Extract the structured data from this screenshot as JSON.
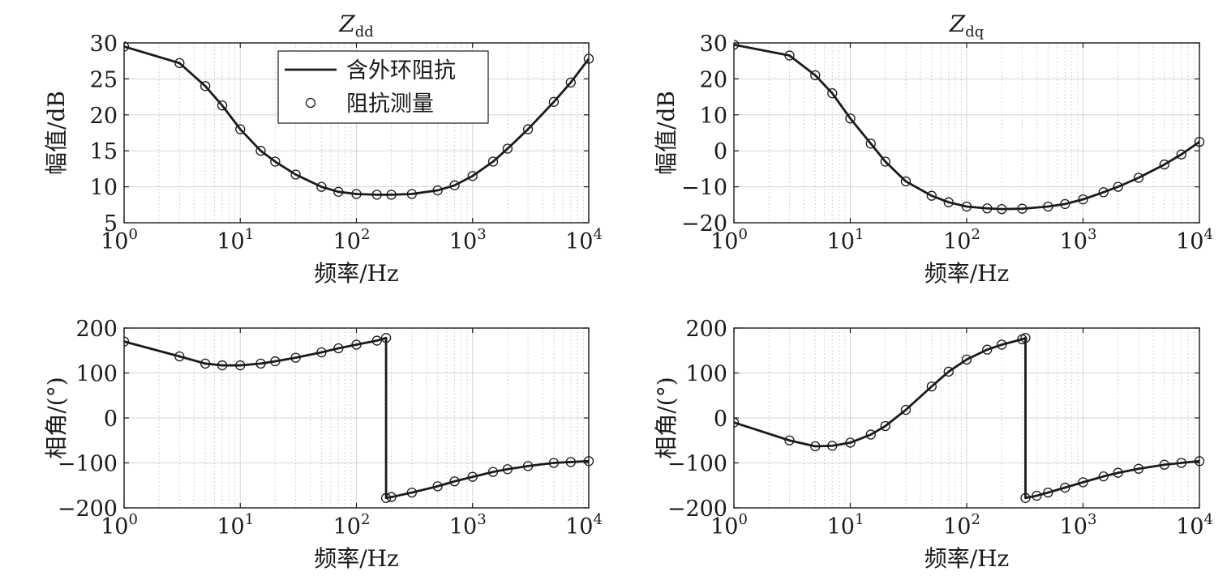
{
  "chart_data": [
    {
      "type": "line",
      "title": "Z",
      "title_sub": "dd",
      "xlabel": "频率/Hz",
      "ylabel": "幅值/dB",
      "x_scale": "log",
      "xlim": [
        1,
        10000
      ],
      "ylim": [
        5,
        30
      ],
      "y_ticks": [
        "5",
        "10",
        "15",
        "20",
        "25",
        "30"
      ],
      "x_ticks": [
        {
          "base": "10",
          "exp": "0"
        },
        {
          "base": "10",
          "exp": "1"
        },
        {
          "base": "10",
          "exp": "2"
        },
        {
          "base": "10",
          "exp": "3"
        },
        {
          "base": "10",
          "exp": "4"
        }
      ],
      "grid": true,
      "legend_position": "top-center",
      "legend": [
        "含外环阻抗",
        "阻抗测量"
      ],
      "series": [
        {
          "name": "含外环阻抗",
          "style": "solid-line",
          "color": "#1a1a1a",
          "x": [
            1,
            3,
            5,
            7,
            10,
            15,
            20,
            30,
            50,
            70,
            100,
            150,
            200,
            300,
            500,
            700,
            1000,
            1500,
            2000,
            3000,
            5000,
            7000,
            10000
          ],
          "y": [
            29.5,
            27.2,
            24.0,
            21.3,
            18.0,
            15.0,
            13.5,
            11.7,
            10.0,
            9.3,
            9.0,
            8.9,
            8.9,
            9.0,
            9.5,
            10.2,
            11.5,
            13.5,
            15.3,
            18.0,
            21.8,
            24.5,
            27.8
          ]
        },
        {
          "name": "阻抗测量",
          "style": "open-circle",
          "color": "#1a1a1a",
          "x": [
            1,
            3,
            5,
            7,
            10,
            15,
            20,
            30,
            50,
            70,
            100,
            150,
            200,
            300,
            500,
            700,
            1000,
            1500,
            2000,
            3000,
            5000,
            7000,
            10000
          ],
          "y": [
            29.5,
            27.2,
            24.0,
            21.3,
            18.0,
            15.0,
            13.5,
            11.7,
            10.0,
            9.3,
            9.0,
            8.9,
            8.9,
            9.0,
            9.5,
            10.2,
            11.5,
            13.5,
            15.3,
            18.0,
            21.8,
            24.5,
            27.8
          ]
        }
      ]
    },
    {
      "type": "line",
      "title": "Z",
      "title_sub": "dq",
      "xlabel": "频率/Hz",
      "ylabel": "幅值/dB",
      "x_scale": "log",
      "xlim": [
        1,
        10000
      ],
      "ylim": [
        -20,
        30
      ],
      "y_ticks": [
        "−20",
        "−10",
        "0",
        "10",
        "20",
        "30"
      ],
      "x_ticks": [
        {
          "base": "10",
          "exp": "0"
        },
        {
          "base": "10",
          "exp": "1"
        },
        {
          "base": "10",
          "exp": "2"
        },
        {
          "base": "10",
          "exp": "3"
        },
        {
          "base": "10",
          "exp": "4"
        }
      ],
      "grid": true,
      "series": [
        {
          "name": "含外环阻抗",
          "style": "solid-line",
          "color": "#1a1a1a",
          "x": [
            1,
            3,
            5,
            7,
            10,
            15,
            20,
            30,
            50,
            70,
            100,
            150,
            200,
            300,
            500,
            700,
            1000,
            1500,
            2000,
            3000,
            5000,
            7000,
            10000
          ],
          "y": [
            29.5,
            26.5,
            21.0,
            16.0,
            9.0,
            2.0,
            -3.0,
            -8.5,
            -12.5,
            -14.3,
            -15.5,
            -16.0,
            -16.2,
            -16.1,
            -15.5,
            -14.8,
            -13.5,
            -11.5,
            -10.0,
            -7.5,
            -3.8,
            -1.0,
            2.5
          ]
        },
        {
          "name": "阻抗测量",
          "style": "open-circle",
          "color": "#1a1a1a",
          "x": [
            1,
            3,
            5,
            7,
            10,
            15,
            20,
            30,
            50,
            70,
            100,
            150,
            200,
            300,
            500,
            700,
            1000,
            1500,
            2000,
            3000,
            5000,
            7000,
            10000
          ],
          "y": [
            29.5,
            26.5,
            21.0,
            16.0,
            9.0,
            2.0,
            -3.0,
            -8.5,
            -12.5,
            -14.3,
            -15.5,
            -16.0,
            -16.2,
            -16.1,
            -15.5,
            -14.8,
            -13.5,
            -11.5,
            -10.0,
            -7.5,
            -3.8,
            -1.0,
            2.5
          ]
        }
      ]
    },
    {
      "type": "line",
      "title": "",
      "xlabel": "频率/Hz",
      "ylabel": "相角/(°)",
      "x_scale": "log",
      "xlim": [
        1,
        10000
      ],
      "ylim": [
        -200,
        200
      ],
      "y_ticks": [
        "−200",
        "−100",
        "0",
        "100",
        "200"
      ],
      "x_ticks": [
        {
          "base": "10",
          "exp": "0"
        },
        {
          "base": "10",
          "exp": "1"
        },
        {
          "base": "10",
          "exp": "2"
        },
        {
          "base": "10",
          "exp": "3"
        },
        {
          "base": "10",
          "exp": "4"
        }
      ],
      "grid": true,
      "series": [
        {
          "name": "含外环阻抗",
          "style": "solid-line",
          "color": "#1a1a1a",
          "x": [
            1,
            3,
            5,
            7,
            10,
            15,
            20,
            30,
            50,
            70,
            100,
            150,
            180,
            180,
            200,
            300,
            500,
            700,
            1000,
            1500,
            2000,
            3000,
            5000,
            7000,
            10000
          ],
          "y": [
            170,
            137,
            121,
            117,
            117,
            121,
            126,
            134,
            146,
            155,
            163,
            172,
            178,
            -178,
            -176,
            -166,
            -152,
            -141,
            -131,
            -120,
            -114,
            -107,
            -100,
            -98,
            -96
          ]
        },
        {
          "name": "阻抗测量",
          "style": "open-circle",
          "color": "#1a1a1a",
          "x": [
            1,
            3,
            5,
            7,
            10,
            15,
            20,
            30,
            50,
            70,
            100,
            150,
            180,
            180,
            200,
            300,
            500,
            700,
            1000,
            1500,
            2000,
            3000,
            5000,
            7000,
            10000
          ],
          "y": [
            170,
            137,
            121,
            117,
            117,
            121,
            126,
            134,
            146,
            155,
            163,
            172,
            178,
            -178,
            -176,
            -166,
            -152,
            -141,
            -131,
            -120,
            -114,
            -107,
            -100,
            -98,
            -96
          ]
        }
      ]
    },
    {
      "type": "line",
      "title": "",
      "xlabel": "频率/Hz",
      "ylabel": "相角/(°)",
      "x_scale": "log",
      "xlim": [
        1,
        10000
      ],
      "ylim": [
        -200,
        200
      ],
      "y_ticks": [
        "−200",
        "−100",
        "0",
        "100",
        "200"
      ],
      "x_ticks": [
        {
          "base": "10",
          "exp": "0"
        },
        {
          "base": "10",
          "exp": "1"
        },
        {
          "base": "10",
          "exp": "2"
        },
        {
          "base": "10",
          "exp": "3"
        },
        {
          "base": "10",
          "exp": "4"
        }
      ],
      "grid": true,
      "series": [
        {
          "name": "含外环阻抗",
          "style": "solid-line",
          "color": "#1a1a1a",
          "x": [
            1,
            3,
            5,
            7,
            10,
            15,
            20,
            30,
            50,
            70,
            100,
            150,
            200,
            300,
            320,
            320,
            400,
            500,
            700,
            1000,
            1500,
            2000,
            3000,
            5000,
            7000,
            10000
          ],
          "y": [
            -10,
            -50,
            -63,
            -62,
            -55,
            -37,
            -18,
            18,
            70,
            103,
            130,
            152,
            163,
            175,
            178,
            -178,
            -173,
            -166,
            -155,
            -143,
            -130,
            -122,
            -113,
            -104,
            -100,
            -96
          ]
        },
        {
          "name": "阻抗测量",
          "style": "open-circle",
          "color": "#1a1a1a",
          "x": [
            1,
            3,
            5,
            7,
            10,
            15,
            20,
            30,
            50,
            70,
            100,
            150,
            200,
            300,
            320,
            320,
            400,
            500,
            700,
            1000,
            1500,
            2000,
            3000,
            5000,
            7000,
            10000
          ],
          "y": [
            -10,
            -50,
            -63,
            -62,
            -55,
            -37,
            -18,
            18,
            70,
            103,
            130,
            152,
            163,
            175,
            178,
            -178,
            -173,
            -166,
            -155,
            -143,
            -130,
            -122,
            -113,
            -104,
            -100,
            -96
          ]
        }
      ]
    }
  ]
}
